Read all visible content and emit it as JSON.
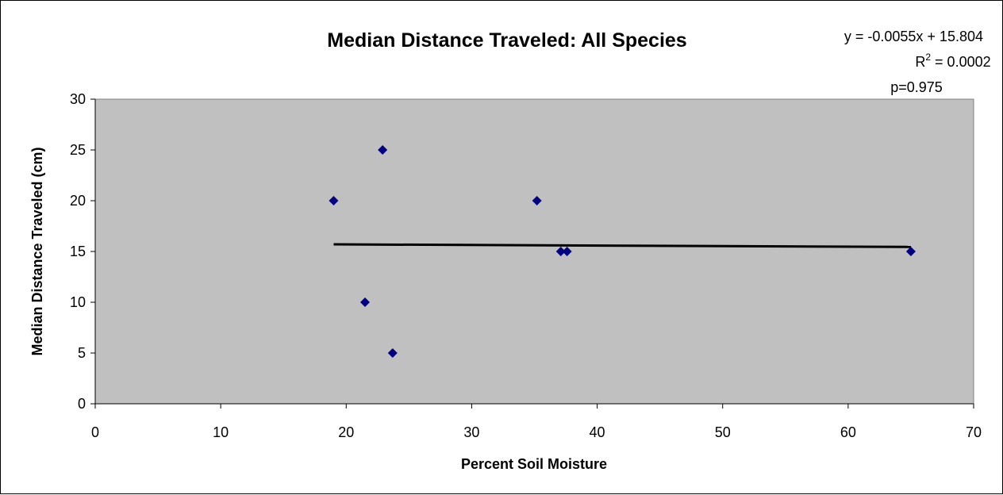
{
  "chart_data": {
    "type": "scatter",
    "title": "Median Distance Traveled: All Species",
    "xlabel": "Percent Soil Moisture",
    "ylabel": "Median Distance Traveled (cm)",
    "xlim": [
      0,
      70
    ],
    "ylim": [
      0,
      30
    ],
    "xticks": [
      0,
      10,
      20,
      30,
      40,
      50,
      60,
      70
    ],
    "yticks": [
      0,
      5,
      10,
      15,
      20,
      25,
      30
    ],
    "grid": false,
    "legend": "none",
    "plot_background": "#c0c0c0",
    "marker_color": "#000080",
    "series": [
      {
        "x": [
          19.0,
          21.5,
          22.9,
          23.7,
          35.2,
          37.1,
          37.6,
          65.0
        ],
        "y": [
          20,
          10,
          25,
          5,
          20,
          15,
          15,
          15
        ]
      }
    ],
    "trendline": {
      "slope": -0.0055,
      "intercept": 15.804,
      "x_range": [
        19.0,
        65.0
      ],
      "color": "#000000"
    },
    "annotations": {
      "equation": "y = -0.0055x + 15.804",
      "r_prefix": "R",
      "r_sup": "2",
      "r_value": " = 0.0002",
      "p_value": "p=0.975"
    }
  }
}
